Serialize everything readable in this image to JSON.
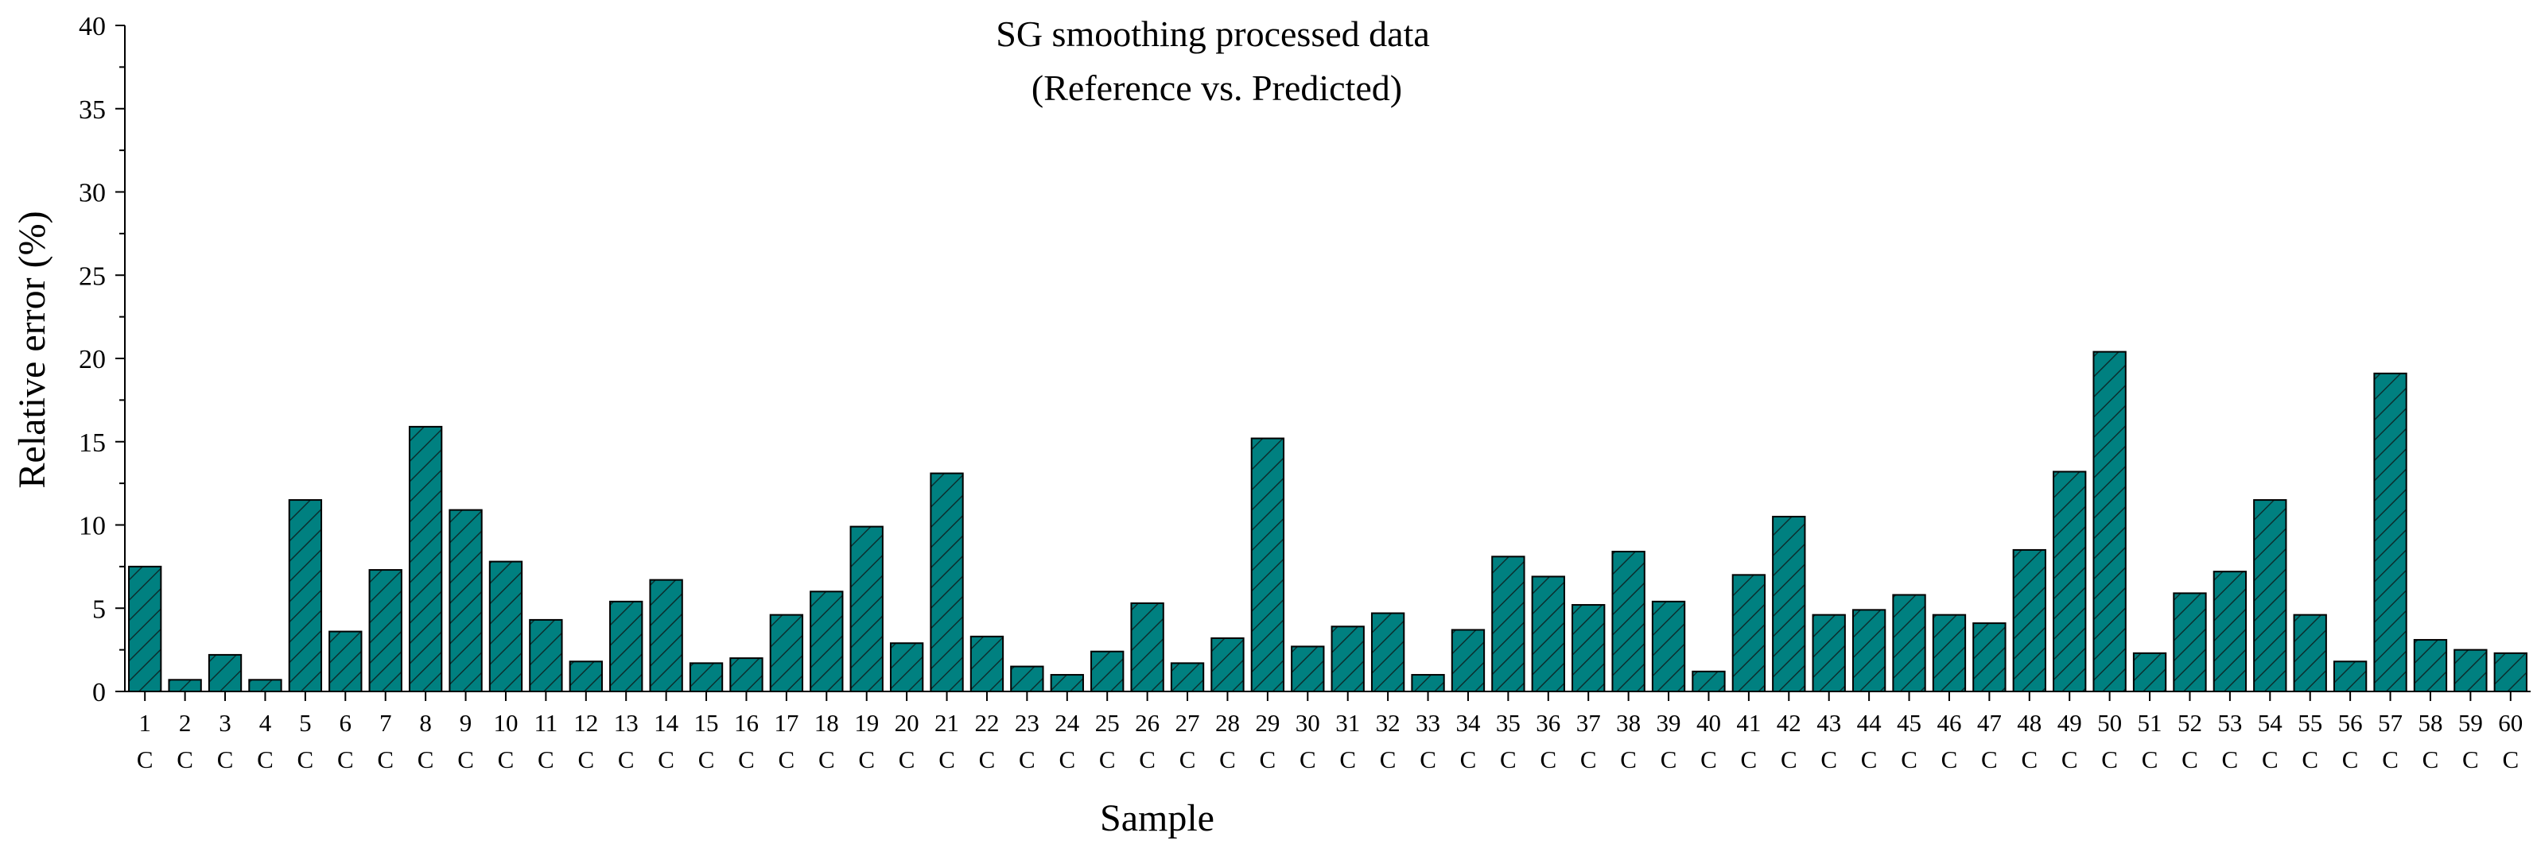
{
  "chart_data": {
    "type": "bar",
    "title": "SG smoothing processed data",
    "subtitle": "(Reference vs. Predicted)",
    "xlabel": "Sample",
    "ylabel": "Relative error (%)",
    "ylim": [
      0,
      40
    ],
    "yticks": [
      0,
      5,
      10,
      15,
      20,
      25,
      30,
      35,
      40
    ],
    "grid": false,
    "bar_color": "#008080",
    "bar_pattern": "diagonal-hatch",
    "category_suffix": "C",
    "categories": [
      "1",
      "2",
      "3",
      "4",
      "5",
      "6",
      "7",
      "8",
      "9",
      "10",
      "11",
      "12",
      "13",
      "14",
      "15",
      "16",
      "17",
      "18",
      "19",
      "20",
      "21",
      "22",
      "23",
      "24",
      "25",
      "26",
      "27",
      "28",
      "29",
      "30",
      "31",
      "32",
      "33",
      "34",
      "35",
      "36",
      "37",
      "38",
      "39",
      "40",
      "41",
      "42",
      "43",
      "44",
      "45",
      "46",
      "47",
      "48",
      "49",
      "50",
      "51",
      "52",
      "53",
      "54",
      "55",
      "56",
      "57",
      "58",
      "59",
      "60"
    ],
    "values": [
      7.5,
      0.7,
      2.2,
      0.7,
      11.5,
      3.6,
      7.3,
      15.9,
      10.9,
      7.8,
      4.3,
      1.8,
      5.4,
      6.7,
      1.7,
      2.0,
      4.6,
      6.0,
      9.9,
      2.9,
      13.1,
      3.3,
      1.5,
      1.0,
      2.4,
      5.3,
      1.7,
      3.2,
      15.2,
      2.7,
      3.9,
      4.7,
      1.0,
      3.7,
      8.1,
      6.9,
      5.2,
      8.4,
      5.4,
      1.2,
      7.0,
      10.5,
      4.6,
      4.9,
      5.8,
      4.6,
      4.1,
      8.5,
      13.2,
      20.4,
      2.3,
      5.9,
      7.2,
      11.5,
      4.6,
      1.8,
      19.1,
      3.1,
      2.5,
      2.3
    ]
  }
}
